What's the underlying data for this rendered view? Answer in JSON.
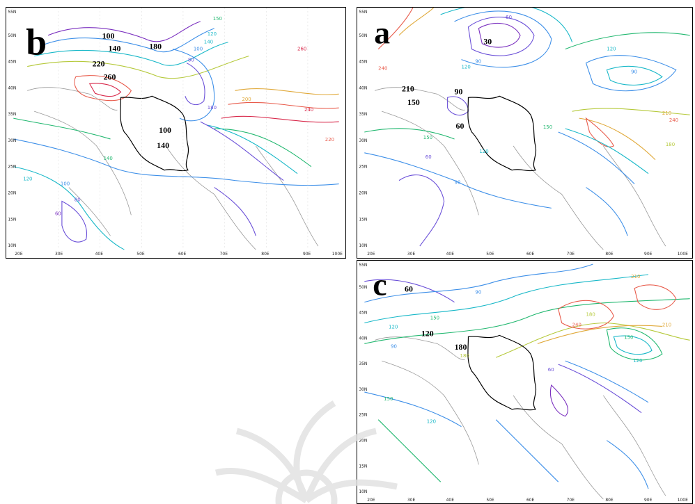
{
  "axes": {
    "lon_labels": [
      "20E",
      "30E",
      "40E",
      "50E",
      "60E",
      "70E",
      "80E",
      "90E",
      "100E"
    ],
    "lat_labels": [
      "10N",
      "15N",
      "20N",
      "25N",
      "30N",
      "35N",
      "40N",
      "45N",
      "50N",
      "55N"
    ]
  },
  "panels": {
    "b": {
      "letter": "b",
      "bold_labels": [
        "100",
        "140",
        "180",
        "220",
        "260",
        "100",
        "140"
      ],
      "contour_labels": [
        "120",
        "140",
        "150",
        "100",
        "80",
        "180",
        "200",
        "220",
        "240",
        "260",
        "120",
        "100",
        "80",
        "60",
        "140"
      ]
    },
    "a": {
      "letter": "a",
      "bold_labels": [
        "30",
        "210",
        "150",
        "90",
        "60"
      ],
      "contour_labels": [
        "60",
        "90",
        "120",
        "150",
        "180",
        "210",
        "240",
        "90",
        "120",
        "150",
        "240",
        "60",
        "90",
        "120"
      ]
    },
    "c": {
      "letter": "c",
      "bold_labels": [
        "60",
        "120",
        "180"
      ],
      "contour_labels": [
        "90",
        "120",
        "150",
        "180",
        "210",
        "240",
        "150",
        "120",
        "90",
        "60",
        "120",
        "150",
        "180",
        "210"
      ]
    }
  },
  "colors": {
    "c30": "#7a2fbf",
    "c60": "#6a4fd8",
    "c90": "#3d8fe8",
    "c120": "#18b8c8",
    "c150": "#22b870",
    "c180": "#b5c93a",
    "c210": "#e0a93a",
    "c240": "#e85a4a",
    "c260": "#d8284a",
    "boundary": "#000000",
    "coast": "#9a9a9a"
  }
}
